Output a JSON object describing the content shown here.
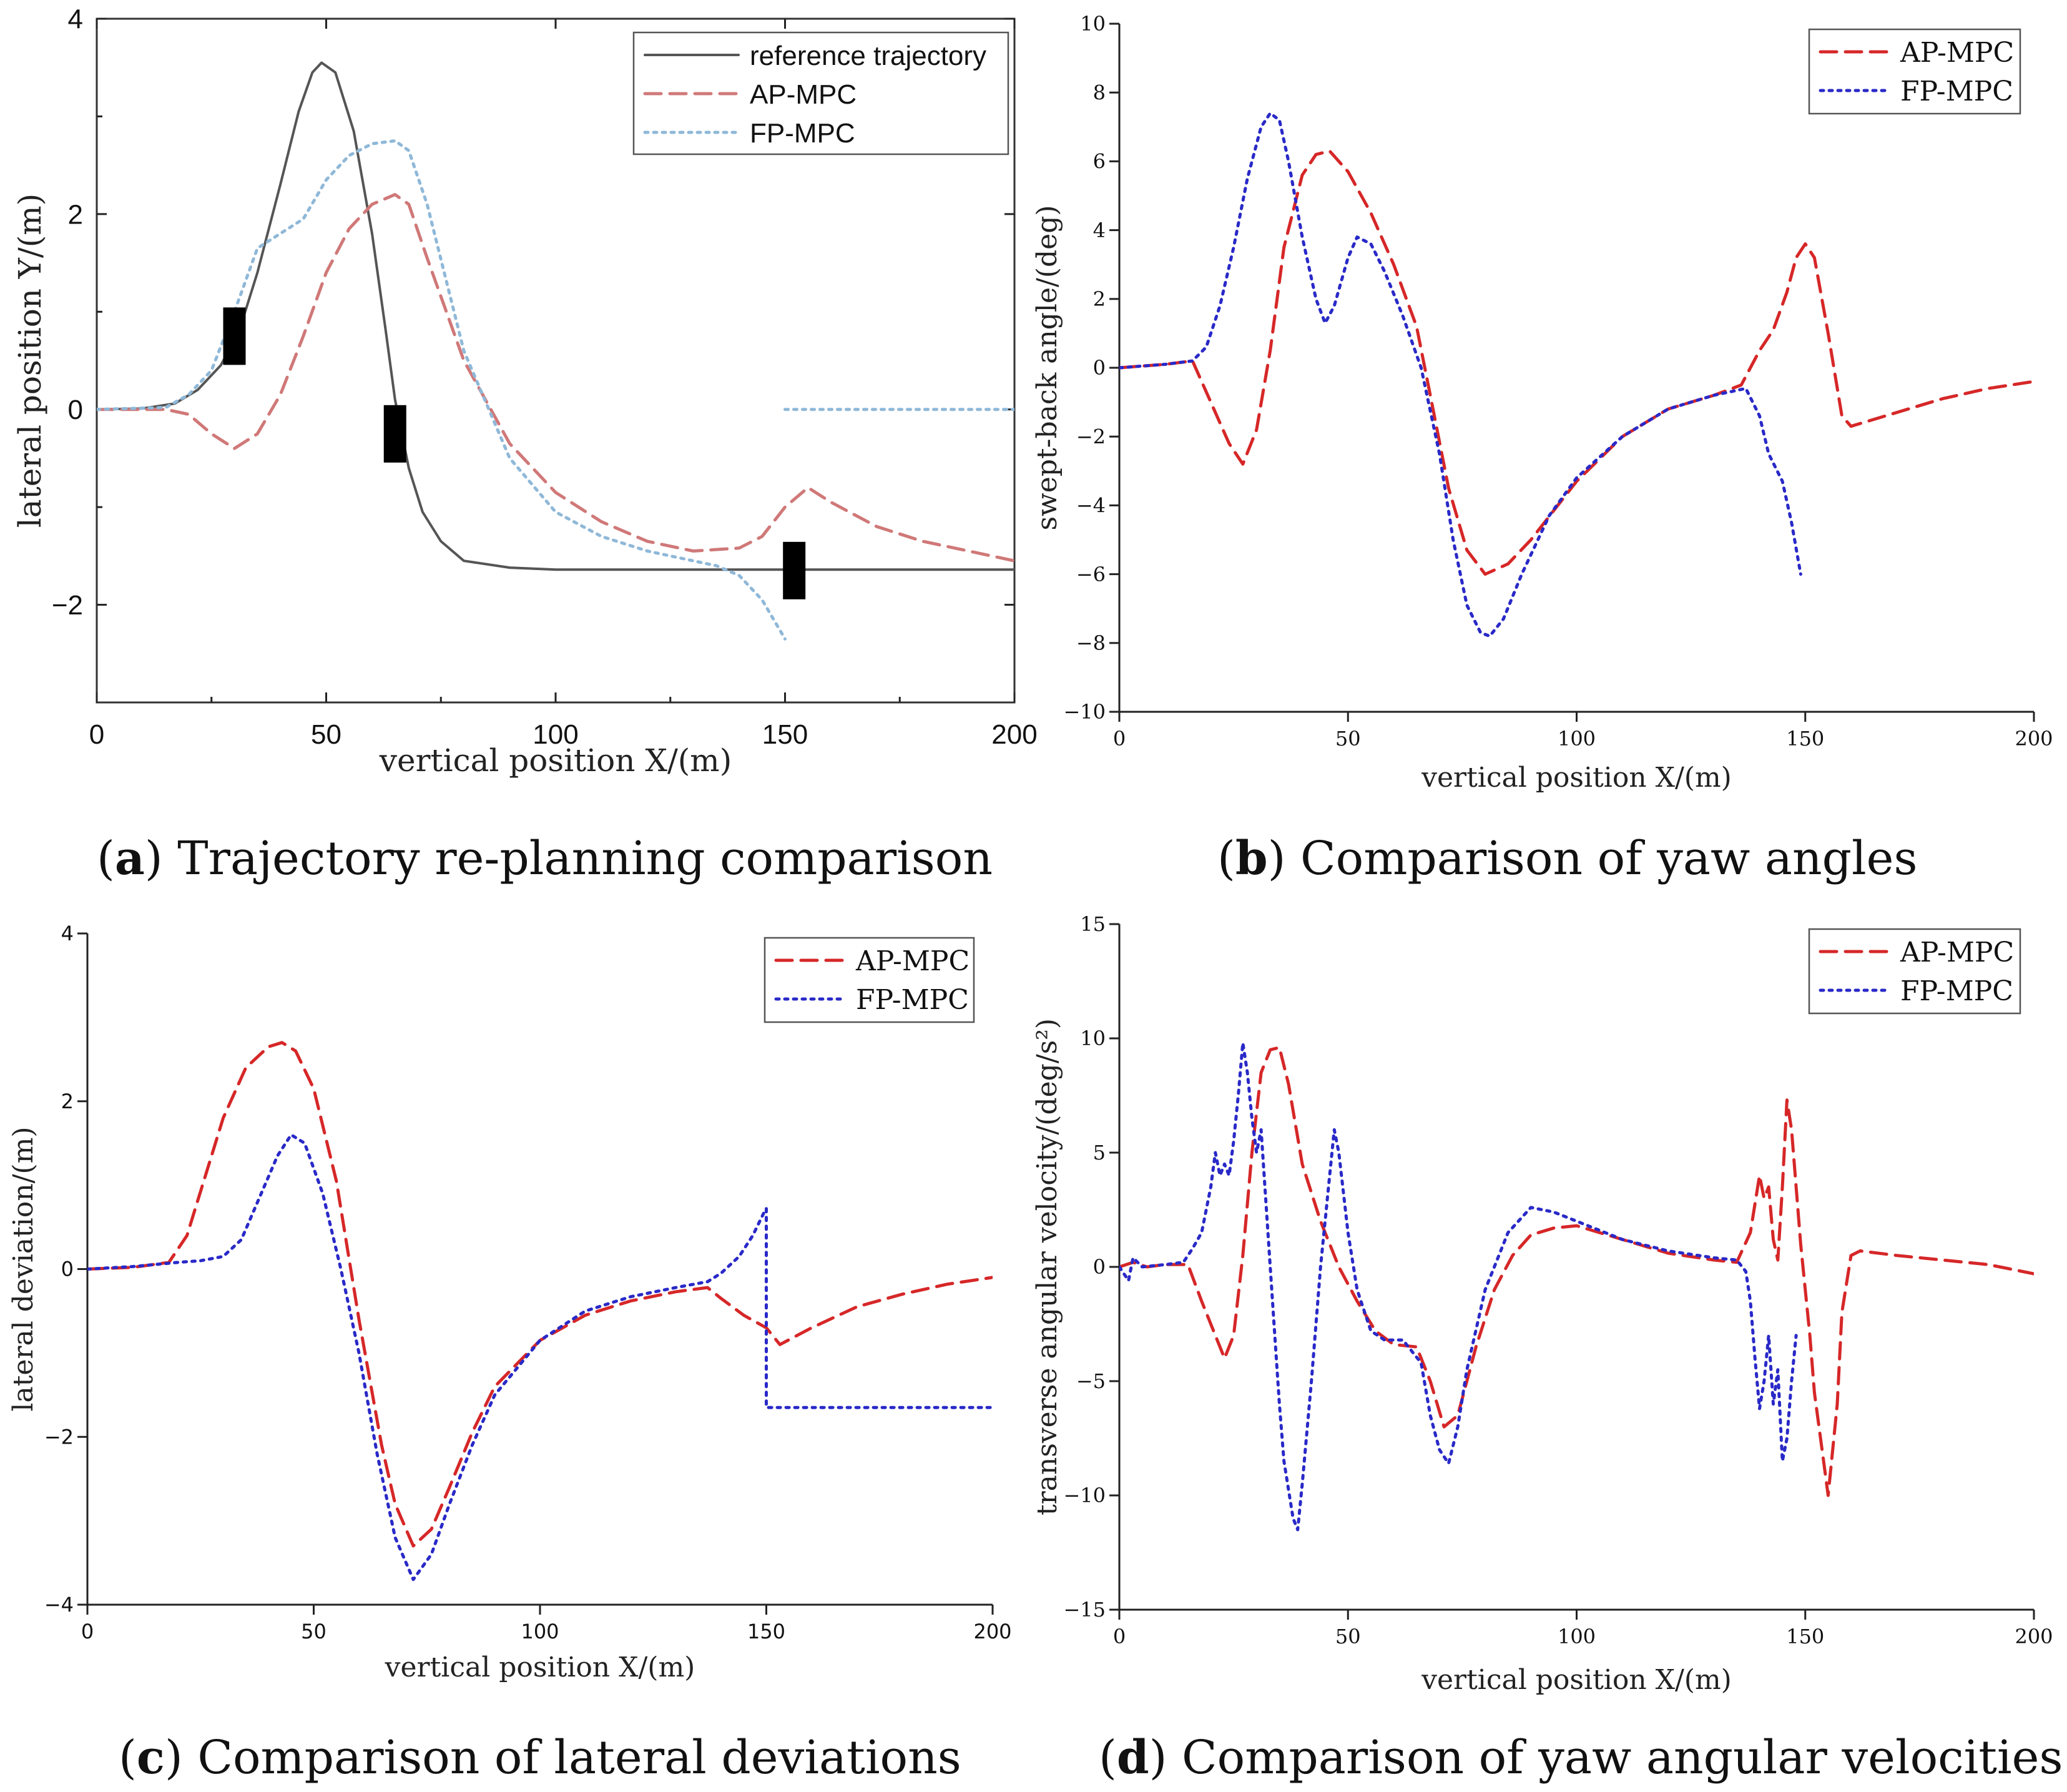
{
  "colors": {
    "reference": "#555555",
    "ap_mpc": "#d62728",
    "fp_mpc_blue": "#2929c8",
    "fp_mpc_light": "#8fb8d8",
    "ap_mpc_light": "#d07878"
  },
  "captions": [
    {
      "letter": "a",
      "text": " Trajectory re-planning comparison"
    },
    {
      "letter": "b",
      "text": " Comparison of yaw angles"
    },
    {
      "letter": "c",
      "text": " Comparison of lateral deviations"
    },
    {
      "letter": "d",
      "text": " Comparison of yaw angular velocities"
    }
  ],
  "chart_data": [
    {
      "id": "a",
      "type": "line",
      "title": "Trajectory re-planning comparison",
      "xlabel": "vertical position X/(m)",
      "ylabel": "lateral position Y/(m)",
      "xlim": [
        0,
        200
      ],
      "ylim": [
        -3,
        4
      ],
      "xticks": [
        0,
        50,
        100,
        150,
        200
      ],
      "xtick_labels": [
        "0",
        "50",
        "100",
        "150",
        "200"
      ],
      "yticks": [
        -2,
        0,
        2,
        4
      ],
      "ytick_labels": [
        "−2",
        "0",
        "2",
        "4"
      ],
      "legend": [
        "reference trajectory",
        "AP-MPC",
        "FP-MPC"
      ],
      "series": [
        {
          "name": "reference trajectory",
          "style": "solid",
          "color": "#555555",
          "x": [
            0,
            10,
            17,
            22,
            27,
            31,
            35,
            40,
            44,
            47,
            49,
            52,
            56,
            60,
            63,
            65,
            68,
            71,
            75,
            80,
            90,
            100,
            150,
            200
          ],
          "y": [
            0,
            0.01,
            0.06,
            0.2,
            0.45,
            0.8,
            1.4,
            2.3,
            3.05,
            3.45,
            3.55,
            3.45,
            2.85,
            1.8,
            0.8,
            0.1,
            -0.6,
            -1.05,
            -1.35,
            -1.55,
            -1.62,
            -1.64,
            -1.64,
            -1.64
          ]
        },
        {
          "name": "AP-MPC",
          "style": "dashed",
          "color": "#d07878",
          "x": [
            0,
            15,
            20,
            25,
            30,
            35,
            40,
            45,
            50,
            55,
            60,
            65,
            68,
            72,
            80,
            90,
            100,
            110,
            120,
            130,
            140,
            145,
            150,
            155,
            160,
            170,
            180,
            190,
            200
          ],
          "y": [
            0,
            0.0,
            -0.05,
            -0.25,
            -0.4,
            -0.25,
            0.15,
            0.75,
            1.4,
            1.85,
            2.1,
            2.2,
            2.1,
            1.55,
            0.5,
            -0.35,
            -0.85,
            -1.15,
            -1.35,
            -1.45,
            -1.42,
            -1.3,
            -1.0,
            -0.8,
            -0.95,
            -1.2,
            -1.35,
            -1.45,
            -1.55
          ]
        },
        {
          "name": "FP-MPC",
          "style": "dotted",
          "color": "#8fb8d8",
          "x": [
            0,
            15,
            20,
            25,
            30,
            35,
            40,
            45,
            50,
            55,
            60,
            65,
            68,
            72,
            80,
            90,
            100,
            110,
            120,
            130,
            135,
            140,
            145,
            150
          ],
          "y": [
            0,
            0.02,
            0.15,
            0.4,
            1.0,
            1.65,
            1.8,
            1.95,
            2.35,
            2.6,
            2.72,
            2.75,
            2.65,
            2.1,
            0.6,
            -0.5,
            -1.05,
            -1.3,
            -1.45,
            -1.55,
            -1.6,
            -1.7,
            -1.95,
            -2.35
          ]
        },
        {
          "name": "FP-MPC (after)",
          "style": "dotted",
          "color": "#8fb8d8",
          "x": [
            150,
            200
          ],
          "y": [
            0,
            0
          ]
        }
      ],
      "obstacles": [
        {
          "x": 30,
          "y": 0.75
        },
        {
          "x": 65,
          "y": -0.25
        },
        {
          "x": 152,
          "y": -1.65
        }
      ]
    },
    {
      "id": "b",
      "type": "line",
      "title": "Comparison of yaw angles",
      "xlabel": "vertical position X/(m)",
      "ylabel": "swept-back angle/(deg)",
      "xlim": [
        0,
        200
      ],
      "ylim": [
        -10,
        10
      ],
      "xticks": [
        0,
        50,
        100,
        150,
        200
      ],
      "xtick_labels": [
        "0",
        "50",
        "100",
        "150",
        "200"
      ],
      "yticks": [
        -10,
        -8,
        -6,
        -4,
        -2,
        0,
        2,
        4,
        6,
        8,
        10
      ],
      "ytick_labels": [
        "−10",
        "−8",
        "−6",
        "−4",
        "−2",
        "0",
        "2",
        "4",
        "6",
        "8",
        "10"
      ],
      "legend": [
        "AP-MPC",
        "FP-MPC"
      ],
      "series": [
        {
          "name": "AP-MPC",
          "style": "dashed",
          "color": "#d62728",
          "x": [
            0,
            10,
            16,
            20,
            24,
            27,
            30,
            33,
            36,
            40,
            43,
            46,
            50,
            55,
            60,
            65,
            68,
            72,
            76,
            80,
            85,
            90,
            100,
            110,
            120,
            130,
            136,
            140,
            143,
            146,
            148,
            150,
            152,
            155,
            158,
            160,
            170,
            180,
            190,
            200
          ],
          "y": [
            0,
            0.1,
            0.2,
            -1.0,
            -2.2,
            -2.8,
            -1.8,
            0.5,
            3.5,
            5.6,
            6.2,
            6.3,
            5.7,
            4.5,
            3.0,
            1.2,
            -0.8,
            -3.5,
            -5.3,
            -6.0,
            -5.7,
            -5.0,
            -3.3,
            -2.0,
            -1.2,
            -0.8,
            -0.5,
            0.5,
            1.1,
            2.2,
            3.2,
            3.6,
            3.2,
            1.0,
            -1.4,
            -1.7,
            -1.3,
            -0.9,
            -0.6,
            -0.4
          ]
        },
        {
          "name": "FP-MPC",
          "style": "dotted",
          "color": "#2929c8",
          "x": [
            0,
            10,
            16,
            19,
            22,
            25,
            28,
            31,
            33,
            35,
            37,
            40,
            43,
            45,
            47,
            50,
            52,
            55,
            58,
            62,
            66,
            70,
            73,
            76,
            79,
            81,
            84,
            88,
            94,
            100,
            110,
            120,
            130,
            137,
            140,
            142,
            145,
            147,
            149
          ],
          "y": [
            0,
            0.1,
            0.2,
            0.6,
            1.8,
            3.5,
            5.5,
            7.0,
            7.4,
            7.2,
            6.0,
            3.8,
            2.0,
            1.3,
            1.8,
            3.2,
            3.8,
            3.6,
            2.8,
            1.5,
            0.0,
            -2.5,
            -5.0,
            -6.9,
            -7.7,
            -7.8,
            -7.3,
            -6.0,
            -4.3,
            -3.2,
            -2.0,
            -1.2,
            -0.8,
            -0.6,
            -1.4,
            -2.5,
            -3.3,
            -4.5,
            -6.0
          ]
        }
      ]
    },
    {
      "id": "c",
      "type": "line",
      "title": "Comparison of lateral deviations",
      "xlabel": "vertical position X/(m)",
      "ylabel": "lateral deviation/(m)",
      "xlim": [
        0,
        200
      ],
      "ylim": [
        -4,
        4
      ],
      "xticks": [
        0,
        50,
        100,
        150,
        200
      ],
      "xtick_labels": [
        "0",
        "50",
        "100",
        "150",
        "200"
      ],
      "yticks": [
        -4,
        -2,
        0,
        2,
        4
      ],
      "ytick_labels": [
        "−4",
        "−2",
        "0",
        "2",
        "4"
      ],
      "legend": [
        "AP-MPC",
        "FP-MPC"
      ],
      "series": [
        {
          "name": "AP-MPC",
          "style": "dashed",
          "color": "#d62728",
          "x": [
            0,
            10,
            18,
            22,
            26,
            30,
            35,
            40,
            43,
            46,
            50,
            55,
            60,
            65,
            68,
            72,
            76,
            80,
            85,
            90,
            100,
            110,
            120,
            130,
            137,
            140,
            145,
            150,
            153,
            160,
            170,
            180,
            190,
            200
          ],
          "y": [
            0,
            0.02,
            0.08,
            0.4,
            1.1,
            1.8,
            2.4,
            2.65,
            2.7,
            2.6,
            2.15,
            1.05,
            -0.6,
            -2.1,
            -2.8,
            -3.3,
            -3.1,
            -2.6,
            -1.95,
            -1.4,
            -0.85,
            -0.55,
            -0.38,
            -0.27,
            -0.22,
            -0.35,
            -0.55,
            -0.7,
            -0.9,
            -0.7,
            -0.45,
            -0.3,
            -0.18,
            -0.1
          ]
        },
        {
          "name": "FP-MPC",
          "style": "dotted",
          "color": "#2929c8",
          "x": [
            0,
            10,
            20,
            25,
            30,
            34,
            38,
            42,
            45,
            48,
            52,
            56,
            60,
            64,
            68,
            72,
            76,
            80,
            85,
            90,
            100,
            110,
            120,
            130,
            137,
            140,
            144,
            147,
            149.9
          ],
          "y": [
            0,
            0.03,
            0.08,
            0.1,
            0.15,
            0.35,
            0.85,
            1.35,
            1.6,
            1.5,
            0.9,
            0.0,
            -1.0,
            -2.2,
            -3.2,
            -3.7,
            -3.4,
            -2.8,
            -2.1,
            -1.5,
            -0.85,
            -0.5,
            -0.33,
            -0.22,
            -0.15,
            -0.05,
            0.15,
            0.4,
            0.72
          ]
        },
        {
          "name": "FP-MPC (after)",
          "style": "dotted",
          "color": "#2929c8",
          "x": [
            150,
            150,
            200
          ],
          "y": [
            0.72,
            -1.65,
            -1.65
          ]
        }
      ]
    },
    {
      "id": "d",
      "type": "line",
      "title": "Comparison of yaw angular velocities",
      "xlabel": "vertical position X/(m)",
      "ylabel": "transverse angular velocity/(deg/s²)",
      "xlim": [
        0,
        200
      ],
      "ylim": [
        -15,
        15
      ],
      "xticks": [
        0,
        50,
        100,
        150,
        200
      ],
      "xtick_labels": [
        "0",
        "50",
        "100",
        "150",
        "200"
      ],
      "yticks": [
        -15,
        -10,
        -5,
        0,
        5,
        10,
        15
      ],
      "ytick_labels": [
        "−15",
        "−10",
        "−5",
        "0",
        "5",
        "10",
        "15"
      ],
      "legend": [
        "AP-MPC",
        "FP-MPC"
      ],
      "series": [
        {
          "name": "AP-MPC",
          "style": "dashed",
          "color": "#d62728",
          "x": [
            0,
            3,
            6,
            10,
            15,
            18,
            21,
            23,
            25,
            27,
            29,
            31,
            33,
            35,
            37,
            40,
            44,
            48,
            52,
            56,
            60,
            65,
            68,
            71,
            74,
            78,
            82,
            86,
            90,
            95,
            100,
            110,
            120,
            130,
            135,
            138,
            140,
            141,
            142,
            143,
            144,
            145,
            146,
            147,
            149,
            151,
            152,
            154,
            155,
            157,
            158,
            160,
            162,
            170,
            180,
            190,
            200
          ],
          "y": [
            0,
            0.2,
            0.0,
            0.1,
            0.1,
            -1.5,
            -3.0,
            -4.0,
            -3.0,
            0.5,
            5.0,
            8.5,
            9.5,
            9.6,
            8.0,
            4.5,
            2.0,
            0.0,
            -1.5,
            -2.8,
            -3.4,
            -3.5,
            -5.0,
            -7.0,
            -6.5,
            -3.5,
            -1.0,
            0.5,
            1.4,
            1.7,
            1.8,
            1.2,
            0.6,
            0.3,
            0.2,
            1.5,
            4.0,
            3.0,
            3.5,
            1.2,
            0.3,
            3.5,
            7.3,
            6.0,
            1.0,
            -3.0,
            -5.5,
            -8.5,
            -10.0,
            -6.0,
            -2.0,
            0.5,
            0.7,
            0.5,
            0.3,
            0.1,
            -0.3
          ]
        },
        {
          "name": "FP-MPC",
          "style": "dotted",
          "color": "#2929c8",
          "x": [
            0,
            2,
            3,
            5,
            10,
            14,
            16,
            18,
            20,
            21,
            22,
            23,
            24,
            25,
            26,
            27,
            28,
            29,
            30,
            31,
            32,
            33,
            34,
            35,
            36,
            38,
            39,
            40,
            42,
            44,
            46,
            47,
            48,
            50,
            52,
            55,
            58,
            62,
            66,
            68,
            70,
            72,
            74,
            76,
            80,
            85,
            90,
            95,
            100,
            110,
            120,
            130,
            135,
            137,
            138,
            139,
            140,
            141,
            142,
            143,
            144,
            145,
            146,
            147,
            148
          ],
          "y": [
            0,
            -0.6,
            0.4,
            0.0,
            0.1,
            0.2,
            0.8,
            1.5,
            3.5,
            5.0,
            4.0,
            4.5,
            4.0,
            5.5,
            7.5,
            9.8,
            8.5,
            6.5,
            5.0,
            6.0,
            3.0,
            0.0,
            -3.0,
            -6.0,
            -8.5,
            -11.0,
            -11.5,
            -9.5,
            -5.0,
            0.0,
            4.0,
            6.0,
            5.0,
            1.5,
            -1.0,
            -2.8,
            -3.2,
            -3.2,
            -4.2,
            -6.5,
            -8.0,
            -8.6,
            -7.0,
            -4.5,
            -1.0,
            1.5,
            2.6,
            2.4,
            2.0,
            1.2,
            0.7,
            0.4,
            0.3,
            -0.2,
            -1.5,
            -4.0,
            -6.2,
            -5.0,
            -3.0,
            -6.0,
            -4.5,
            -8.5,
            -7.5,
            -5.0,
            -3.0
          ]
        }
      ]
    }
  ]
}
